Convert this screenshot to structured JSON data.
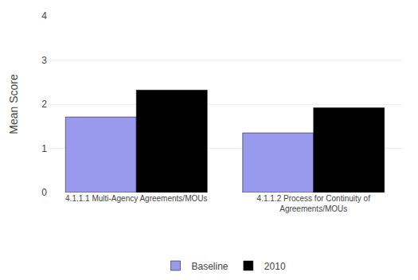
{
  "chart_data": {
    "type": "bar",
    "categories": [
      "4.1.1.1 Multi-Agency Agreements/MOUs",
      "4.1.1.2 Process for Continuity of\nAgreements/MOUs"
    ],
    "series": [
      {
        "name": "Baseline",
        "color": "#9999ee",
        "values": [
          1.71,
          1.35
        ]
      },
      {
        "name": "2010",
        "color": "#000000",
        "values": [
          2.32,
          1.92
        ]
      }
    ],
    "ylabel": "Mean Score",
    "ylim": [
      0,
      4
    ],
    "yticks": [
      0,
      1,
      2,
      3,
      4
    ],
    "grid": true,
    "legend": "bottom"
  }
}
